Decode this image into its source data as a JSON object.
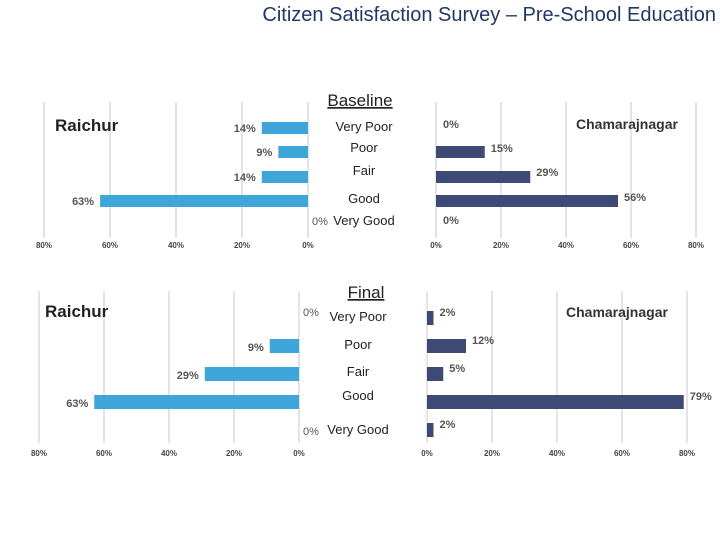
{
  "title": "Citizen Satisfaction Survey – Pre-School Education",
  "colors": {
    "raichur": "#3ea6d9",
    "chamarajnagar": "#3d4a75",
    "axis": "#c8c8c8"
  },
  "chart_data": [
    {
      "type": "bar",
      "title": "Baseline",
      "categories": [
        "Very Poor",
        "Poor",
        "Fair",
        "Good",
        "Very Good"
      ],
      "series": [
        {
          "name": "Raichur",
          "values": [
            14,
            9,
            14,
            63,
            0
          ],
          "labels": [
            "14%",
            "9%",
            "14%",
            "63%",
            "0%"
          ]
        },
        {
          "name": "Chamarajnagar",
          "values": [
            0,
            15,
            29,
            56,
            0
          ],
          "labels": [
            "0%",
            "15%",
            "29%",
            "56%",
            "0%"
          ]
        }
      ],
      "left_axis_ticks": [
        "80%",
        "60%",
        "40%",
        "20%",
        "0%"
      ],
      "right_axis_ticks": [
        "0%",
        "20%",
        "40%",
        "60%",
        "80%"
      ],
      "xlim": [
        0,
        80
      ]
    },
    {
      "type": "bar",
      "title": "Final",
      "categories": [
        "Very Poor",
        "Poor",
        "Fair",
        "Good",
        "Very Good"
      ],
      "series": [
        {
          "name": "Raichur",
          "values": [
            0,
            9,
            29,
            63,
            0
          ],
          "labels": [
            "0%",
            "9%",
            "29%",
            "63%",
            "0%"
          ]
        },
        {
          "name": "Chamarajnagar",
          "values": [
            2,
            12,
            5,
            79,
            2
          ],
          "labels": [
            "2%",
            "12%",
            "5%",
            "79%",
            "2%"
          ]
        }
      ],
      "left_axis_ticks": [
        "80%",
        "60%",
        "40%",
        "20%",
        "0%"
      ],
      "right_axis_ticks": [
        "0%",
        "20%",
        "40%",
        "60%",
        "80%"
      ],
      "xlim": [
        0,
        80
      ]
    }
  ]
}
